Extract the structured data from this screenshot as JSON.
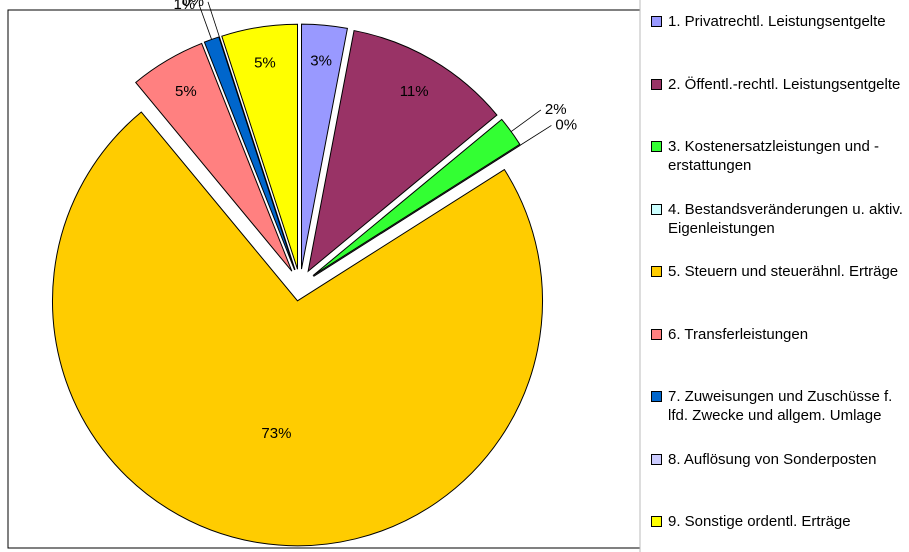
{
  "chart_data": {
    "type": "pie",
    "categories": [
      "1. Privatrechtl. Leistungsentgelte",
      "2. Öffentl.-rechtl. Leistungsentgelte",
      "3. Kostenersatzleistungen und -erstattungen",
      "4. Bestandsveränderungen u. aktiv. Eigenleistungen",
      "5. Steuern und steuerähnl. Erträge",
      "6. Transferleistungen",
      "7. Zuweisungen und Zuschüsse f. lfd. Zwecke und allgem. Umlage",
      "8. Auflösung von Sonderposten",
      "9. Sonstige ordentl. Erträge"
    ],
    "values": [
      3,
      11,
      2,
      0,
      73,
      5,
      1,
      0,
      5
    ],
    "value_labels": [
      "3%",
      "11%",
      "2%",
      "0%",
      "73%",
      "5%",
      "1%",
      "0%",
      "5%"
    ],
    "colors": [
      "#9999ff",
      "#993366",
      "#33ff33",
      "#ccffff",
      "#ffcc00",
      "#ff8080",
      "#0066cc",
      "#ccccff",
      "#ffff00"
    ],
    "legend": "right"
  }
}
